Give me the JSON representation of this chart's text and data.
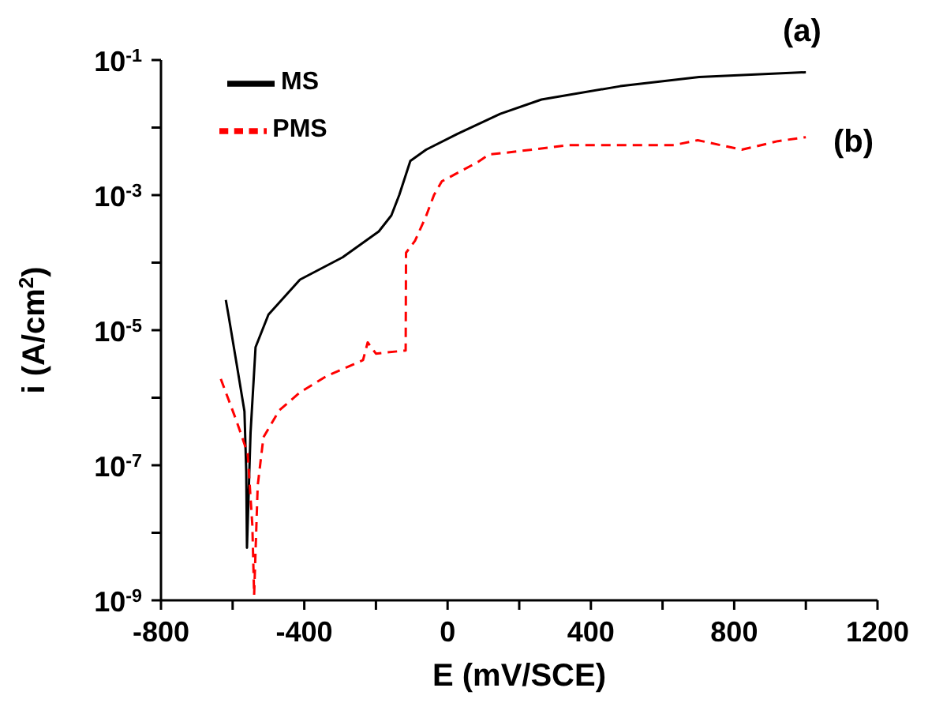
{
  "chart_data": {
    "type": "line",
    "xlabel": "E (mV/SCE)",
    "ylabel": "i (A/cm$^{2}$)",
    "log": "y",
    "grid": false,
    "legend": "top left",
    "marker": "none",
    "xlim": [
      -800,
      1200
    ],
    "xticks": [
      -800,
      {
        "value": -600,
        "label": null
      },
      -400,
      {
        "value": -200,
        "label": null
      },
      0,
      {
        "value": 200,
        "label": null
      },
      400,
      {
        "value": 600,
        "label": null
      },
      800,
      {
        "value": 1000,
        "label": null
      },
      1200
    ],
    "ylim": [
      1e-09,
      0.1
    ],
    "yticks": [
      {
        "value": 1e-09,
        "label": "10$^{-9}$"
      },
      {
        "value": 1e-08,
        "label": null
      },
      {
        "value": 1e-07,
        "label": "10$^{-7}$"
      },
      {
        "value": 1e-06,
        "label": null
      },
      {
        "value": 1e-05,
        "label": "10$^{-5}$"
      },
      {
        "value": 0.0001,
        "label": null
      },
      {
        "value": 0.001,
        "label": "10$^{-3}$"
      },
      {
        "value": 0.01,
        "label": null
      },
      {
        "value": 0.1,
        "label": "10$^{-1}$"
      }
    ],
    "series": [
      {
        "name": "MS",
        "color": "#000000",
        "line_style": "solid",
        "x": [
          -619,
          -611,
          -589,
          -567,
          -562,
          -560,
          -550,
          -536,
          -500,
          -412,
          -293,
          -192,
          -157,
          -135,
          -104,
          -60,
          28,
          147,
          262,
          482,
          702,
          1000
        ],
        "values": [
          2.8e-05,
          1.6e-05,
          3.2e-06,
          6.3e-07,
          8e-08,
          6e-09,
          3e-07,
          5.6e-06,
          1.7e-05,
          5.6e-05,
          0.00012,
          0.00029,
          0.0005,
          0.001,
          0.0032,
          0.0047,
          0.0081,
          0.016,
          0.026,
          0.041,
          0.056,
          0.066
        ]
      },
      {
        "name": "PMS",
        "color": "#ff0000",
        "line_style": "dashed",
        "x": [
          -633,
          -589,
          -558,
          -545,
          -540,
          -530,
          -514,
          -470,
          -412,
          -337,
          -236,
          -223,
          -200,
          -117,
          -116,
          -91,
          -60,
          -38,
          -16,
          85,
          116,
          174,
          337,
          632,
          698,
          821,
          922,
          1000
        ],
        "values": [
          1.9e-06,
          4.5e-07,
          1.5e-07,
          1.3e-08,
          1.2e-09,
          5e-08,
          2.6e-07,
          6.5e-07,
          1.2e-06,
          2.1e-06,
          3.6e-06,
          6.6e-06,
          4.5e-06,
          5e-06,
          0.00014,
          0.00021,
          0.00049,
          0.001,
          0.0016,
          0.0031,
          0.004,
          0.0043,
          0.0055,
          0.0055,
          0.0065,
          0.0047,
          0.0063,
          0.0072
        ]
      }
    ],
    "annotations": [
      "(a)",
      "(b)"
    ]
  }
}
